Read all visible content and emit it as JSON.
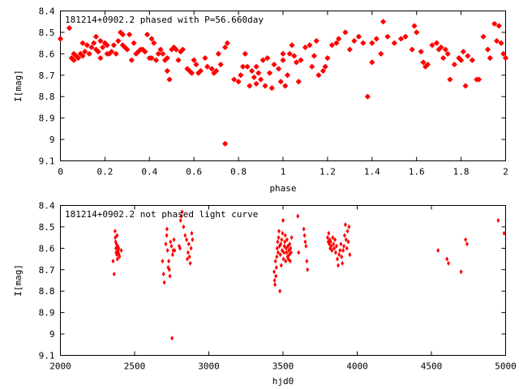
{
  "chart_data": [
    {
      "type": "scatter",
      "title": "181214+0902.2 phased with P=56.660day",
      "xlabel": "phase",
      "ylabel": "I[mag]",
      "xlim": [
        0,
        2
      ],
      "ylim": [
        9.1,
        8.4
      ],
      "y_inverted": true,
      "grid": false,
      "xticks": [
        "0",
        "0.2",
        "0.4",
        "0.6",
        "0.8",
        "1",
        "1.2",
        "1.4",
        "1.6",
        "1.8",
        "2"
      ],
      "xtick_values": [
        0,
        0.2,
        0.4,
        0.6,
        0.8,
        1,
        1.2,
        1.4,
        1.6,
        1.8,
        2
      ],
      "yticks": [
        "8.4",
        "8.5",
        "8.6",
        "8.7",
        "8.8",
        "8.9",
        "9",
        "9.1"
      ],
      "ytick_values": [
        8.4,
        8.5,
        8.6,
        8.7,
        8.8,
        8.9,
        9.0,
        9.1
      ],
      "marker": "star",
      "color": "#ff0000",
      "points": [
        [
          0.0,
          8.53
        ],
        [
          0.04,
          8.48
        ],
        [
          0.05,
          8.62
        ],
        [
          0.06,
          8.63
        ],
        [
          0.06,
          8.6
        ],
        [
          0.07,
          8.61
        ],
        [
          0.08,
          8.62
        ],
        [
          0.09,
          8.6
        ],
        [
          0.1,
          8.55
        ],
        [
          0.1,
          8.61
        ],
        [
          0.11,
          8.59
        ],
        [
          0.12,
          8.56
        ],
        [
          0.13,
          8.6
        ],
        [
          0.14,
          8.57
        ],
        [
          0.15,
          8.55
        ],
        [
          0.16,
          8.52
        ],
        [
          0.16,
          8.58
        ],
        [
          0.17,
          8.59
        ],
        [
          0.18,
          8.54
        ],
        [
          0.18,
          8.62
        ],
        [
          0.19,
          8.57
        ],
        [
          0.2,
          8.55
        ],
        [
          0.21,
          8.56
        ],
        [
          0.21,
          8.6
        ],
        [
          0.22,
          8.6
        ],
        [
          0.23,
          8.59
        ],
        [
          0.24,
          8.56
        ],
        [
          0.25,
          8.6
        ],
        [
          0.26,
          8.54
        ],
        [
          0.27,
          8.5
        ],
        [
          0.28,
          8.51
        ],
        [
          0.28,
          8.56
        ],
        [
          0.29,
          8.57
        ],
        [
          0.3,
          8.58
        ],
        [
          0.31,
          8.51
        ],
        [
          0.32,
          8.63
        ],
        [
          0.33,
          8.55
        ],
        [
          0.34,
          8.6
        ],
        [
          0.35,
          8.59
        ],
        [
          0.36,
          8.58
        ],
        [
          0.37,
          8.58
        ],
        [
          0.38,
          8.59
        ],
        [
          0.39,
          8.51
        ],
        [
          0.4,
          8.62
        ],
        [
          0.41,
          8.53
        ],
        [
          0.41,
          8.62
        ],
        [
          0.42,
          8.55
        ],
        [
          0.43,
          8.63
        ],
        [
          0.44,
          8.6
        ],
        [
          0.45,
          8.58
        ],
        [
          0.46,
          8.6
        ],
        [
          0.47,
          8.63
        ],
        [
          0.48,
          8.62
        ],
        [
          0.48,
          8.68
        ],
        [
          0.49,
          8.72
        ],
        [
          0.5,
          8.58
        ],
        [
          0.51,
          8.57
        ],
        [
          0.52,
          8.58
        ],
        [
          0.53,
          8.63
        ],
        [
          0.54,
          8.59
        ],
        [
          0.55,
          8.58
        ],
        [
          0.57,
          8.67
        ],
        [
          0.58,
          8.68
        ],
        [
          0.59,
          8.69
        ],
        [
          0.6,
          8.63
        ],
        [
          0.61,
          8.65
        ],
        [
          0.62,
          8.69
        ],
        [
          0.63,
          8.68
        ],
        [
          0.65,
          8.62
        ],
        [
          0.66,
          8.66
        ],
        [
          0.68,
          8.67
        ],
        [
          0.69,
          8.69
        ],
        [
          0.7,
          8.68
        ],
        [
          0.71,
          8.6
        ],
        [
          0.72,
          8.65
        ],
        [
          0.74,
          8.57
        ],
        [
          0.74,
          9.02
        ],
        [
          0.75,
          8.55
        ],
        [
          0.78,
          8.72
        ],
        [
          0.8,
          8.73
        ],
        [
          0.81,
          8.7
        ],
        [
          0.82,
          8.66
        ],
        [
          0.83,
          8.6
        ],
        [
          0.84,
          8.66
        ],
        [
          0.85,
          8.75
        ],
        [
          0.86,
          8.68
        ],
        [
          0.87,
          8.71
        ],
        [
          0.88,
          8.74
        ],
        [
          0.88,
          8.66
        ],
        [
          0.89,
          8.69
        ],
        [
          0.9,
          8.72
        ],
        [
          0.91,
          8.63
        ],
        [
          0.92,
          8.75
        ],
        [
          0.93,
          8.62
        ],
        [
          0.94,
          8.69
        ],
        [
          0.95,
          8.76
        ],
        [
          0.96,
          8.65
        ],
        [
          0.98,
          8.67
        ],
        [
          0.99,
          8.73
        ],
        [
          1.0,
          8.6
        ],
        [
          1.0,
          8.63
        ],
        [
          1.01,
          8.75
        ],
        [
          1.02,
          8.7
        ],
        [
          1.03,
          8.6
        ],
        [
          1.04,
          8.56
        ],
        [
          1.05,
          8.61
        ],
        [
          1.06,
          8.64
        ],
        [
          1.07,
          8.73
        ],
        [
          1.08,
          8.63
        ],
        [
          1.1,
          8.57
        ],
        [
          1.12,
          8.56
        ],
        [
          1.13,
          8.66
        ],
        [
          1.14,
          8.61
        ],
        [
          1.15,
          8.54
        ],
        [
          1.16,
          8.7
        ],
        [
          1.18,
          8.68
        ],
        [
          1.19,
          8.66
        ],
        [
          1.2,
          8.62
        ],
        [
          1.22,
          8.56
        ],
        [
          1.24,
          8.55
        ],
        [
          1.25,
          8.53
        ],
        [
          1.28,
          8.5
        ],
        [
          1.3,
          8.58
        ],
        [
          1.32,
          8.54
        ],
        [
          1.34,
          8.52
        ],
        [
          1.36,
          8.55
        ],
        [
          1.38,
          8.8
        ],
        [
          1.4,
          8.64
        ],
        [
          1.4,
          8.55
        ],
        [
          1.42,
          8.53
        ],
        [
          1.44,
          8.6
        ],
        [
          1.45,
          8.45
        ],
        [
          1.47,
          8.52
        ],
        [
          1.5,
          8.55
        ],
        [
          1.53,
          8.53
        ],
        [
          1.55,
          8.52
        ],
        [
          1.58,
          8.58
        ],
        [
          1.59,
          8.47
        ],
        [
          1.6,
          8.5
        ],
        [
          1.62,
          8.59
        ],
        [
          1.63,
          8.64
        ],
        [
          1.64,
          8.66
        ],
        [
          1.65,
          8.65
        ],
        [
          1.67,
          8.56
        ],
        [
          1.69,
          8.55
        ],
        [
          1.7,
          8.58
        ],
        [
          1.71,
          8.57
        ],
        [
          1.72,
          8.62
        ],
        [
          1.73,
          8.58
        ],
        [
          1.74,
          8.6
        ],
        [
          1.75,
          8.72
        ],
        [
          1.77,
          8.65
        ],
        [
          1.79,
          8.62
        ],
        [
          1.8,
          8.63
        ],
        [
          1.81,
          8.59
        ],
        [
          1.82,
          8.75
        ],
        [
          1.83,
          8.61
        ],
        [
          1.85,
          8.63
        ],
        [
          1.87,
          8.72
        ],
        [
          1.88,
          8.72
        ],
        [
          1.9,
          8.52
        ],
        [
          1.92,
          8.58
        ],
        [
          1.93,
          8.62
        ],
        [
          1.95,
          8.46
        ],
        [
          1.96,
          8.54
        ],
        [
          1.97,
          8.47
        ],
        [
          1.98,
          8.55
        ],
        [
          1.99,
          8.6
        ],
        [
          2.0,
          8.62
        ]
      ]
    },
    {
      "type": "scatter",
      "title": "181214+0902.2 not phased light curve",
      "xlabel": "hjd0",
      "ylabel": "I[mag]",
      "xlim": [
        2000,
        5000
      ],
      "ylim": [
        9.1,
        8.4
      ],
      "y_inverted": true,
      "grid": false,
      "xticks": [
        "2000",
        "2500",
        "3000",
        "3500",
        "4000",
        "4500",
        "5000"
      ],
      "xtick_values": [
        2000,
        2500,
        3000,
        3500,
        4000,
        4500,
        5000
      ],
      "yticks": [
        "8.4",
        "8.5",
        "8.6",
        "8.7",
        "8.8",
        "8.9",
        "9",
        "9.1"
      ],
      "ytick_values": [
        8.4,
        8.5,
        8.6,
        8.7,
        8.8,
        8.9,
        9.0,
        9.1
      ],
      "marker": "diamond",
      "color": "#ff0000",
      "points": [
        [
          2355,
          8.66
        ],
        [
          2362,
          8.72
        ],
        [
          2368,
          8.52
        ],
        [
          2370,
          8.55
        ],
        [
          2372,
          8.57
        ],
        [
          2374,
          8.6
        ],
        [
          2376,
          8.62
        ],
        [
          2378,
          8.58
        ],
        [
          2380,
          8.63
        ],
        [
          2382,
          8.54
        ],
        [
          2384,
          8.65
        ],
        [
          2386,
          8.59
        ],
        [
          2388,
          8.61
        ],
        [
          2390,
          8.62
        ],
        [
          2393,
          8.6
        ],
        [
          2395,
          8.63
        ],
        [
          2398,
          8.64
        ],
        [
          2410,
          8.61
        ],
        [
          2688,
          8.66
        ],
        [
          2695,
          8.72
        ],
        [
          2700,
          8.76
        ],
        [
          2710,
          8.58
        ],
        [
          2716,
          8.54
        ],
        [
          2718,
          8.51
        ],
        [
          2722,
          8.61
        ],
        [
          2726,
          8.69
        ],
        [
          2730,
          8.66
        ],
        [
          2734,
          8.7
        ],
        [
          2738,
          8.73
        ],
        [
          2742,
          8.57
        ],
        [
          2748,
          8.59
        ],
        [
          2752,
          9.02
        ],
        [
          2756,
          8.63
        ],
        [
          2760,
          8.61
        ],
        [
          2765,
          8.56
        ],
        [
          2770,
          8.61
        ],
        [
          2800,
          8.59
        ],
        [
          2806,
          8.6
        ],
        [
          2810,
          8.47
        ],
        [
          2815,
          8.45
        ],
        [
          2820,
          8.43
        ],
        [
          2830,
          8.5
        ],
        [
          2840,
          8.54
        ],
        [
          2850,
          8.56
        ],
        [
          2855,
          8.65
        ],
        [
          2860,
          8.62
        ],
        [
          2865,
          8.58
        ],
        [
          2870,
          8.64
        ],
        [
          2875,
          8.67
        ],
        [
          2880,
          8.6
        ],
        [
          2885,
          8.53
        ],
        [
          2890,
          8.56
        ],
        [
          3440,
          8.71
        ],
        [
          3443,
          8.75
        ],
        [
          3446,
          8.77
        ],
        [
          3449,
          8.66
        ],
        [
          3452,
          8.73
        ],
        [
          3455,
          8.69
        ],
        [
          3458,
          8.64
        ],
        [
          3461,
          8.6
        ],
        [
          3464,
          8.57
        ],
        [
          3467,
          8.62
        ],
        [
          3470,
          8.55
        ],
        [
          3473,
          8.52
        ],
        [
          3476,
          8.59
        ],
        [
          3479,
          8.8
        ],
        [
          3482,
          8.63
        ],
        [
          3485,
          8.58
        ],
        [
          3488,
          8.68
        ],
        [
          3491,
          8.56
        ],
        [
          3494,
          8.61
        ],
        [
          3497,
          8.53
        ],
        [
          3500,
          8.47
        ],
        [
          3503,
          8.65
        ],
        [
          3506,
          8.62
        ],
        [
          3509,
          8.59
        ],
        [
          3512,
          8.57
        ],
        [
          3515,
          8.54
        ],
        [
          3518,
          8.66
        ],
        [
          3521,
          8.6
        ],
        [
          3524,
          8.62
        ],
        [
          3527,
          8.56
        ],
        [
          3530,
          8.64
        ],
        [
          3533,
          8.59
        ],
        [
          3536,
          8.65
        ],
        [
          3539,
          8.61
        ],
        [
          3542,
          8.63
        ],
        [
          3545,
          8.58
        ],
        [
          3548,
          8.66
        ],
        [
          3551,
          8.6
        ],
        [
          3554,
          8.62
        ],
        [
          3558,
          8.55
        ],
        [
          3600,
          8.45
        ],
        [
          3605,
          8.62
        ],
        [
          3640,
          8.51
        ],
        [
          3645,
          8.54
        ],
        [
          3650,
          8.57
        ],
        [
          3655,
          8.59
        ],
        [
          3660,
          8.66
        ],
        [
          3665,
          8.7
        ],
        [
          3800,
          8.55
        ],
        [
          3805,
          8.57
        ],
        [
          3808,
          8.53
        ],
        [
          3812,
          8.58
        ],
        [
          3815,
          8.56
        ],
        [
          3818,
          8.6
        ],
        [
          3821,
          8.57
        ],
        [
          3825,
          8.59
        ],
        [
          3830,
          8.61
        ],
        [
          3835,
          8.55
        ],
        [
          3840,
          8.58
        ],
        [
          3845,
          8.6
        ],
        [
          3850,
          8.56
        ],
        [
          3855,
          8.62
        ],
        [
          3860,
          8.59
        ],
        [
          3866,
          8.65
        ],
        [
          3872,
          8.68
        ],
        [
          3878,
          8.63
        ],
        [
          3884,
          8.61
        ],
        [
          3890,
          8.58
        ],
        [
          3895,
          8.64
        ],
        [
          3900,
          8.67
        ],
        [
          3905,
          8.61
        ],
        [
          3910,
          8.59
        ],
        [
          3915,
          8.54
        ],
        [
          3920,
          8.49
        ],
        [
          3925,
          8.56
        ],
        [
          3930,
          8.6
        ],
        [
          3935,
          8.52
        ],
        [
          3940,
          8.57
        ],
        [
          3945,
          8.5
        ],
        [
          3950,
          8.63
        ],
        [
          4545,
          8.61
        ],
        [
          4605,
          8.65
        ],
        [
          4615,
          8.67
        ],
        [
          4700,
          8.71
        ],
        [
          4730,
          8.56
        ],
        [
          4740,
          8.58
        ],
        [
          4950,
          8.47
        ],
        [
          4990,
          8.53
        ]
      ]
    }
  ]
}
